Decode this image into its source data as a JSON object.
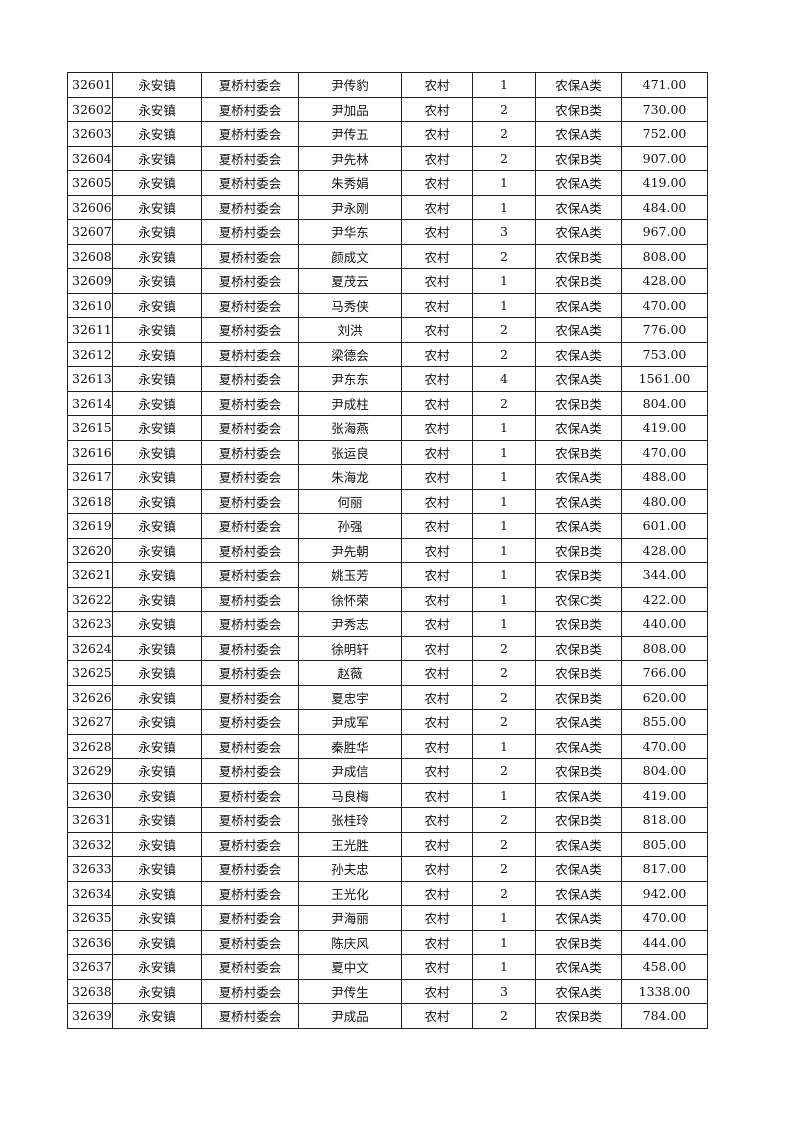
{
  "table": {
    "rows": [
      [
        "32601",
        "永安镇",
        "夏桥村委会",
        "尹传豹",
        "农村",
        "1",
        "农保A类",
        "471.00"
      ],
      [
        "32602",
        "永安镇",
        "夏桥村委会",
        "尹加品",
        "农村",
        "2",
        "农保B类",
        "730.00"
      ],
      [
        "32603",
        "永安镇",
        "夏桥村委会",
        "尹传五",
        "农村",
        "2",
        "农保A类",
        "752.00"
      ],
      [
        "32604",
        "永安镇",
        "夏桥村委会",
        "尹先林",
        "农村",
        "2",
        "农保B类",
        "907.00"
      ],
      [
        "32605",
        "永安镇",
        "夏桥村委会",
        "朱秀娟",
        "农村",
        "1",
        "农保A类",
        "419.00"
      ],
      [
        "32606",
        "永安镇",
        "夏桥村委会",
        "尹永刚",
        "农村",
        "1",
        "农保A类",
        "484.00"
      ],
      [
        "32607",
        "永安镇",
        "夏桥村委会",
        "尹华东",
        "农村",
        "3",
        "农保A类",
        "967.00"
      ],
      [
        "32608",
        "永安镇",
        "夏桥村委会",
        "颜成文",
        "农村",
        "2",
        "农保B类",
        "808.00"
      ],
      [
        "32609",
        "永安镇",
        "夏桥村委会",
        "夏茂云",
        "农村",
        "1",
        "农保B类",
        "428.00"
      ],
      [
        "32610",
        "永安镇",
        "夏桥村委会",
        "马秀侠",
        "农村",
        "1",
        "农保A类",
        "470.00"
      ],
      [
        "32611",
        "永安镇",
        "夏桥村委会",
        "刘洪",
        "农村",
        "2",
        "农保A类",
        "776.00"
      ],
      [
        "32612",
        "永安镇",
        "夏桥村委会",
        "梁德会",
        "农村",
        "2",
        "农保A类",
        "753.00"
      ],
      [
        "32613",
        "永安镇",
        "夏桥村委会",
        "尹东东",
        "农村",
        "4",
        "农保A类",
        "1561.00"
      ],
      [
        "32614",
        "永安镇",
        "夏桥村委会",
        "尹成柱",
        "农村",
        "2",
        "农保B类",
        "804.00"
      ],
      [
        "32615",
        "永安镇",
        "夏桥村委会",
        "张海燕",
        "农村",
        "1",
        "农保A类",
        "419.00"
      ],
      [
        "32616",
        "永安镇",
        "夏桥村委会",
        "张运良",
        "农村",
        "1",
        "农保B类",
        "470.00"
      ],
      [
        "32617",
        "永安镇",
        "夏桥村委会",
        "朱海龙",
        "农村",
        "1",
        "农保A类",
        "488.00"
      ],
      [
        "32618",
        "永安镇",
        "夏桥村委会",
        "何丽",
        "农村",
        "1",
        "农保A类",
        "480.00"
      ],
      [
        "32619",
        "永安镇",
        "夏桥村委会",
        "孙强",
        "农村",
        "1",
        "农保A类",
        "601.00"
      ],
      [
        "32620",
        "永安镇",
        "夏桥村委会",
        "尹先朝",
        "农村",
        "1",
        "农保B类",
        "428.00"
      ],
      [
        "32621",
        "永安镇",
        "夏桥村委会",
        "姚玉芳",
        "农村",
        "1",
        "农保B类",
        "344.00"
      ],
      [
        "32622",
        "永安镇",
        "夏桥村委会",
        "徐怀荣",
        "农村",
        "1",
        "农保C类",
        "422.00"
      ],
      [
        "32623",
        "永安镇",
        "夏桥村委会",
        "尹秀志",
        "农村",
        "1",
        "农保B类",
        "440.00"
      ],
      [
        "32624",
        "永安镇",
        "夏桥村委会",
        "徐明轩",
        "农村",
        "2",
        "农保B类",
        "808.00"
      ],
      [
        "32625",
        "永安镇",
        "夏桥村委会",
        "赵薇",
        "农村",
        "2",
        "农保B类",
        "766.00"
      ],
      [
        "32626",
        "永安镇",
        "夏桥村委会",
        "夏忠宇",
        "农村",
        "2",
        "农保B类",
        "620.00"
      ],
      [
        "32627",
        "永安镇",
        "夏桥村委会",
        "尹成军",
        "农村",
        "2",
        "农保A类",
        "855.00"
      ],
      [
        "32628",
        "永安镇",
        "夏桥村委会",
        "秦胜华",
        "农村",
        "1",
        "农保A类",
        "470.00"
      ],
      [
        "32629",
        "永安镇",
        "夏桥村委会",
        "尹成信",
        "农村",
        "2",
        "农保B类",
        "804.00"
      ],
      [
        "32630",
        "永安镇",
        "夏桥村委会",
        "马良梅",
        "农村",
        "1",
        "农保A类",
        "419.00"
      ],
      [
        "32631",
        "永安镇",
        "夏桥村委会",
        "张桂玲",
        "农村",
        "2",
        "农保B类",
        "818.00"
      ],
      [
        "32632",
        "永安镇",
        "夏桥村委会",
        "王光胜",
        "农村",
        "2",
        "农保A类",
        "805.00"
      ],
      [
        "32633",
        "永安镇",
        "夏桥村委会",
        "孙夫忠",
        "农村",
        "2",
        "农保A类",
        "817.00"
      ],
      [
        "32634",
        "永安镇",
        "夏桥村委会",
        "王光化",
        "农村",
        "2",
        "农保A类",
        "942.00"
      ],
      [
        "32635",
        "永安镇",
        "夏桥村委会",
        "尹海丽",
        "农村",
        "1",
        "农保A类",
        "470.00"
      ],
      [
        "32636",
        "永安镇",
        "夏桥村委会",
        "陈庆风",
        "农村",
        "1",
        "农保B类",
        "444.00"
      ],
      [
        "32637",
        "永安镇",
        "夏桥村委会",
        "夏中文",
        "农村",
        "1",
        "农保A类",
        "458.00"
      ],
      [
        "32638",
        "永安镇",
        "夏桥村委会",
        "尹传生",
        "农村",
        "3",
        "农保A类",
        "1338.00"
      ],
      [
        "32639",
        "永安镇",
        "夏桥村委会",
        "尹成品",
        "农村",
        "2",
        "农保B类",
        "784.00"
      ]
    ]
  }
}
